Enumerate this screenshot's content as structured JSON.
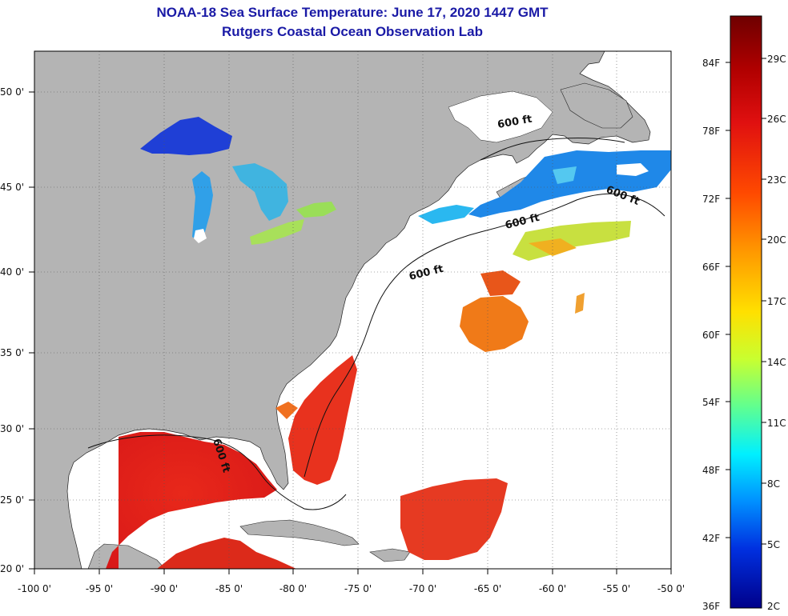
{
  "title": {
    "line1": "NOAA-18 Sea Surface Temperature:  June 17, 2020 1447 GMT",
    "line2": "Rutgers Coastal Ocean Observation Lab"
  },
  "axes": {
    "lat_labels": [
      "50 0'",
      "45 0'",
      "40 0'",
      "35 0'",
      "30 0'",
      "25 0'",
      "20 0'"
    ],
    "lat_values": [
      50,
      45,
      40,
      35,
      30,
      25,
      20
    ],
    "lon_labels": [
      "-100 0'",
      "-95 0'",
      "-90 0'",
      "-85 0'",
      "-80 0'",
      "-75 0'",
      "-70 0'",
      "-65 0'",
      "-60 0'",
      "-55 0'",
      "-50 0'"
    ],
    "lon_values": [
      -100,
      -95,
      -90,
      -85,
      -80,
      -75,
      -70,
      -65,
      -60,
      -55,
      -50
    ]
  },
  "contour_label": "600 ft",
  "colorbar": {
    "fahrenheit": [
      "84F",
      "78F",
      "72F",
      "66F",
      "60F",
      "54F",
      "48F",
      "42F",
      "36F"
    ],
    "celsius": [
      "29C",
      "26C",
      "23C",
      "20C",
      "17C",
      "14C",
      "11C",
      "8C",
      "5C",
      "2C"
    ],
    "colors": [
      "#6e0000",
      "#b00000",
      "#e01010",
      "#ff4a00",
      "#ff9a00",
      "#ffe000",
      "#c8ff30",
      "#60ff90",
      "#00f0ff",
      "#0090ff",
      "#0030e0",
      "#00008a"
    ]
  },
  "colors": {
    "land": "#b4b4b4",
    "ocean_no_data": "#ffffff",
    "title": "#1a1aa6"
  }
}
